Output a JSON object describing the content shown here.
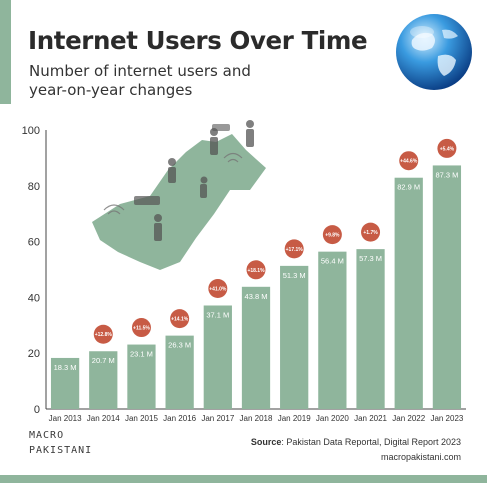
{
  "title": "Internet Users Over Time",
  "subtitle_lines": [
    "Number of internet users and",
    "year-on-year changes"
  ],
  "brand": {
    "line1": "MACRO",
    "line2": "PAKISTANI"
  },
  "source": {
    "label": "Source",
    "text": ": Pakistan Data Reportal, Digital Report 2023"
  },
  "website": "macropakistani.com",
  "colors": {
    "bar": "#8fb59c",
    "badge": "#c75b45",
    "accent": "#8fb59c"
  },
  "icons": [
    "globe-icon",
    "pakistan-map-illustration"
  ],
  "chart_data": {
    "type": "bar",
    "categories": [
      "Jan 2013",
      "Jan 2014",
      "Jan 2015",
      "Jan 2016",
      "Jan 2017",
      "Jan 2018",
      "Jan 2019",
      "Jan 2020",
      "Jan 2021",
      "Jan 2022",
      "Jan 2023"
    ],
    "values": [
      18.3,
      20.7,
      23.1,
      26.3,
      37.1,
      43.8,
      51.3,
      56.4,
      57.3,
      82.9,
      87.3
    ],
    "value_labels": [
      "18.3 M",
      "20.7 M",
      "23.1 M",
      "26.3 M",
      "37.1 M",
      "43.8 M",
      "51.3 M",
      "56.4 M",
      "57.3 M",
      "82.9 M",
      "87.3 M"
    ],
    "yoy_changes": [
      null,
      "+12.8%",
      "+11.5%",
      "+14.1%",
      "+41.0%",
      "+18.1%",
      "+17.1%",
      "+9.8%",
      "+1.7%",
      "+44.6%",
      "+5.4%"
    ],
    "ylim": [
      0,
      100
    ],
    "yticks": [
      0,
      20,
      40,
      60,
      80,
      100
    ],
    "grid": false,
    "legend": "none"
  }
}
